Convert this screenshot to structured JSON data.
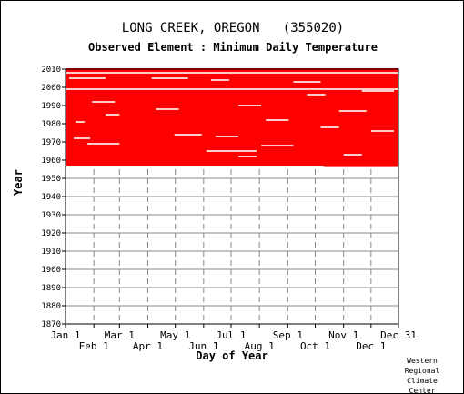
{
  "title": "LONG CREEK, OREGON   (355020)",
  "subtitle": "Observed Element : Minimum Daily Temperature",
  "credit": "Western\nRegional\nClimate\nCenter",
  "colors": {
    "data": "#ff0000",
    "grid": "#888888",
    "gap": "#ffffff",
    "frame": "#000000"
  },
  "chart_data": {
    "type": "heatmap",
    "title": "LONG CREEK, OREGON   (355020)",
    "subtitle": "Observed Element : Minimum Daily Temperature",
    "xlabel": "Day of Year",
    "ylabel": "Year",
    "xlim": [
      1,
      365
    ],
    "ylim": [
      1870,
      2010
    ],
    "x_ticks_top_row": [
      {
        "label": "Jan 1",
        "day": 1
      },
      {
        "label": "Mar 1",
        "day": 60
      },
      {
        "label": "May 1",
        "day": 121
      },
      {
        "label": "Jul 1",
        "day": 182
      },
      {
        "label": "Sep 1",
        "day": 244
      },
      {
        "label": "Nov 1",
        "day": 305
      },
      {
        "label": "Dec 31",
        "day": 365
      }
    ],
    "x_ticks_bottom_row": [
      {
        "label": "Feb 1",
        "day": 32
      },
      {
        "label": "Apr 1",
        "day": 91
      },
      {
        "label": "Jun 1",
        "day": 152
      },
      {
        "label": "Aug 1",
        "day": 213
      },
      {
        "label": "Oct 1",
        "day": 274
      },
      {
        "label": "Dec 1",
        "day": 335
      }
    ],
    "y_ticks": [
      "1870",
      "1880",
      "1890",
      "1900",
      "1910",
      "1920",
      "1930",
      "1940",
      "1950",
      "1960",
      "1970",
      "1980",
      "1990",
      "2000",
      "2010"
    ],
    "grid": true,
    "observed_period": {
      "start_year": 1957,
      "end_year": 2010,
      "late_start_year_after_day": 1958,
      "late_start_day": 283
    },
    "missing_segments": [
      {
        "year": 2008,
        "day_start": 1,
        "day_end": 365
      },
      {
        "year": 2005,
        "day_start": 5,
        "day_end": 45
      },
      {
        "year": 2005,
        "day_start": 95,
        "day_end": 135
      },
      {
        "year": 2004,
        "day_start": 160,
        "day_end": 180
      },
      {
        "year": 2003,
        "day_start": 250,
        "day_end": 280
      },
      {
        "year": 1999,
        "day_start": 1,
        "day_end": 365
      },
      {
        "year": 1998,
        "day_start": 325,
        "day_end": 360
      },
      {
        "year": 1996,
        "day_start": 265,
        "day_end": 285
      },
      {
        "year": 1992,
        "day_start": 30,
        "day_end": 55
      },
      {
        "year": 1990,
        "day_start": 190,
        "day_end": 215
      },
      {
        "year": 1988,
        "day_start": 100,
        "day_end": 125
      },
      {
        "year": 1987,
        "day_start": 300,
        "day_end": 330
      },
      {
        "year": 1985,
        "day_start": 45,
        "day_end": 60
      },
      {
        "year": 1982,
        "day_start": 220,
        "day_end": 245
      },
      {
        "year": 1981,
        "day_start": 12,
        "day_end": 22
      },
      {
        "year": 1978,
        "day_start": 280,
        "day_end": 300
      },
      {
        "year": 1976,
        "day_start": 335,
        "day_end": 360
      },
      {
        "year": 1974,
        "day_start": 120,
        "day_end": 150
      },
      {
        "year": 1973,
        "day_start": 165,
        "day_end": 190
      },
      {
        "year": 1972,
        "day_start": 10,
        "day_end": 28
      },
      {
        "year": 1969,
        "day_start": 25,
        "day_end": 60
      },
      {
        "year": 1968,
        "day_start": 215,
        "day_end": 250
      },
      {
        "year": 1965,
        "day_start": 155,
        "day_end": 210
      },
      {
        "year": 1963,
        "day_start": 305,
        "day_end": 325
      },
      {
        "year": 1962,
        "day_start": 190,
        "day_end": 210
      }
    ]
  }
}
